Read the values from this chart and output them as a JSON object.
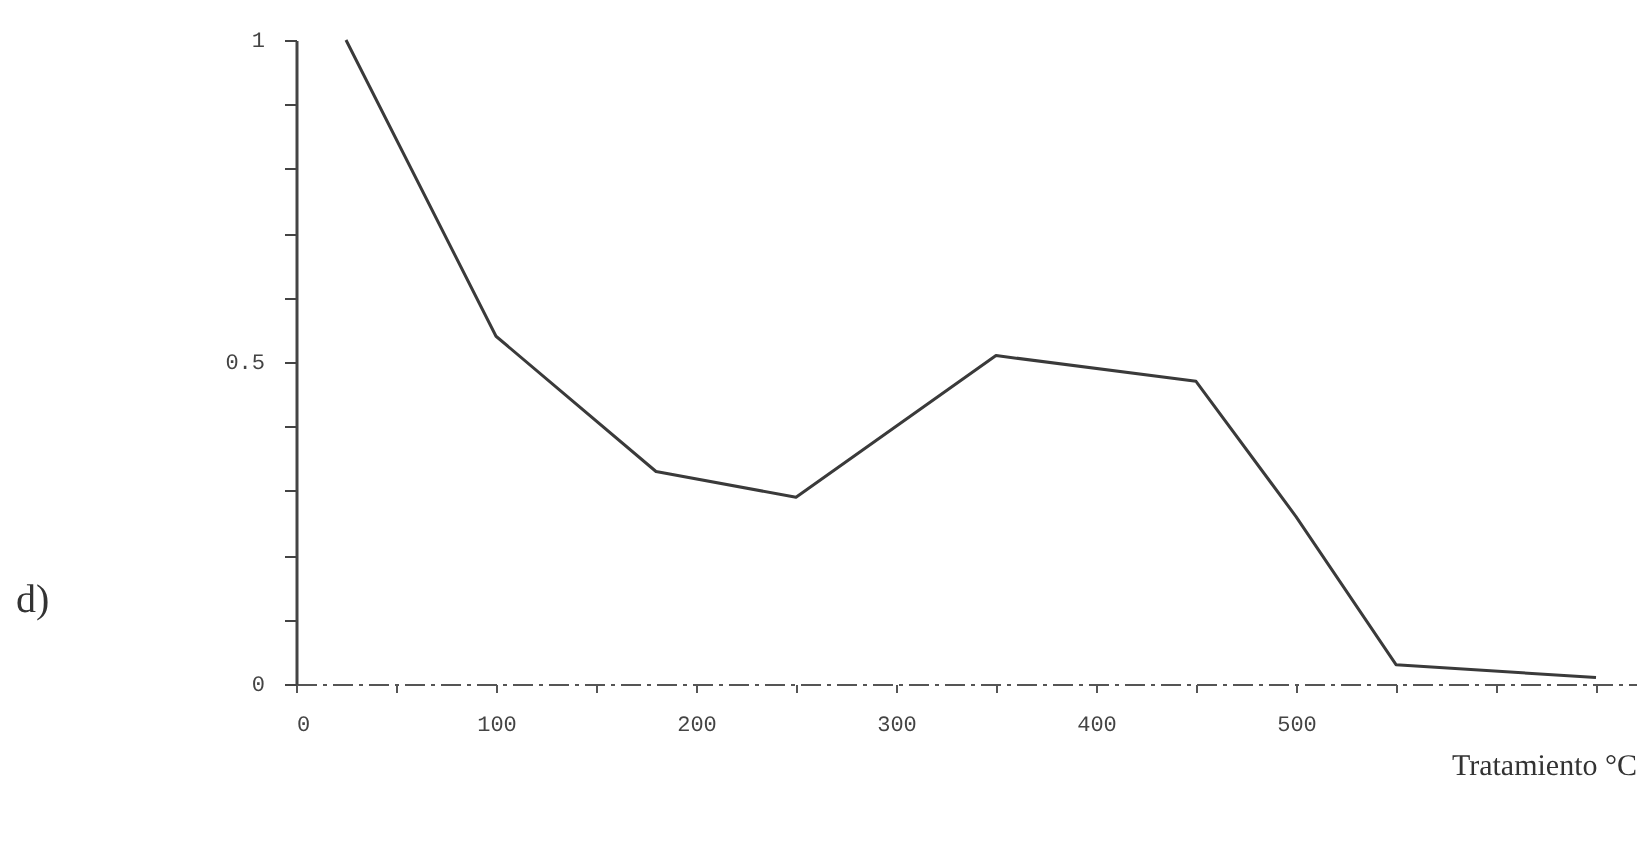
{
  "chart_data": {
    "type": "line",
    "xlabel": "Tratamiento °C",
    "annotations": [
      "d)"
    ],
    "x": [
      25,
      100,
      180,
      250,
      350,
      450,
      500,
      550,
      650
    ],
    "values": [
      1,
      0.54,
      0.33,
      0.29,
      0.51,
      0.47,
      0.26,
      0.03,
      0.01
    ],
    "color": "#3a3a3a",
    "marker": "none",
    "grid": false,
    "xlim": [
      0,
      670
    ],
    "xticks": [
      0,
      {
        "value": 50,
        "label": null
      },
      100,
      {
        "value": 150,
        "label": null
      },
      200,
      {
        "value": 250,
        "label": null
      },
      300,
      {
        "value": 350,
        "label": null
      },
      400,
      {
        "value": 450,
        "label": null
      },
      500,
      {
        "value": 550,
        "label": null
      },
      {
        "value": 600,
        "label": null
      },
      {
        "value": 650,
        "label": null
      }
    ],
    "ylim": [
      0,
      1
    ],
    "yticks": [
      0,
      {
        "value": 0.1,
        "label": null
      },
      {
        "value": 0.2,
        "label": null
      },
      {
        "value": 0.3,
        "label": null
      },
      {
        "value": 0.4,
        "label": null
      },
      0.5,
      {
        "value": 0.6,
        "label": null
      },
      {
        "value": 0.7,
        "label": null
      },
      {
        "value": 0.8,
        "label": null
      },
      {
        "value": 0.9,
        "label": null
      },
      1
    ]
  }
}
